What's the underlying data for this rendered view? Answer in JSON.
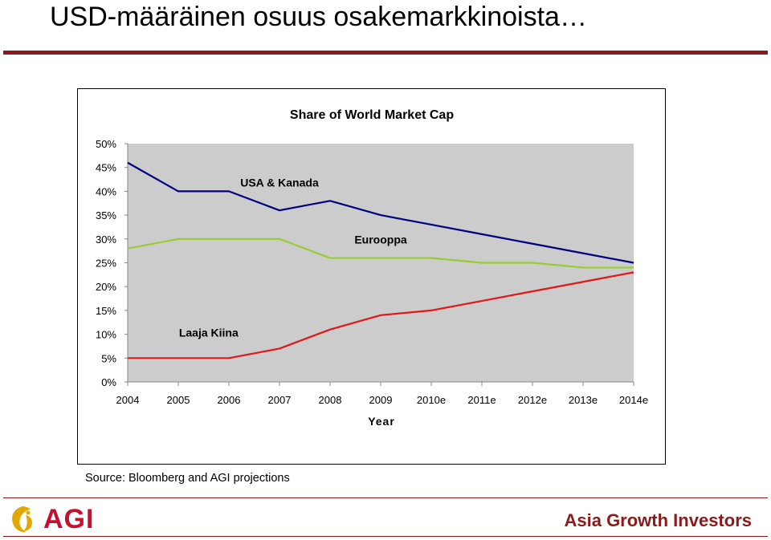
{
  "slide": {
    "title": "USD-määräinen osuus osakemarkkinoista…",
    "source": "Source: Bloomberg and AGI projections",
    "logo_text": "AGI",
    "company_name": "Asia Growth Investors"
  },
  "colors": {
    "rule": "#8b1a1a",
    "plot_background": "#cccccc",
    "logo_red": "#c8102e",
    "logo_gold": "#e0a800"
  },
  "icons": {
    "logo": "agi-logo-icon"
  },
  "chart_data": {
    "type": "line",
    "title": "Share of World Market Cap",
    "xlabel": "Year",
    "ylabel": "",
    "categories": [
      "2004",
      "2005",
      "2006",
      "2007",
      "2008",
      "2009",
      "2010e",
      "2011e",
      "2012e",
      "2013e",
      "2014e"
    ],
    "ylim": [
      0,
      50
    ],
    "yticks": [
      "0%",
      "5%",
      "10%",
      "15%",
      "20%",
      "25%",
      "30%",
      "35%",
      "40%",
      "45%",
      "50%"
    ],
    "grid": false,
    "series": [
      {
        "name": "USA & Kanada",
        "color": "#000080",
        "values": [
          46,
          40,
          40,
          36,
          38,
          35,
          33,
          31,
          29,
          27,
          25
        ]
      },
      {
        "name": "Eurooppa",
        "color": "#99cc33",
        "values": [
          28,
          30,
          30,
          30,
          26,
          26,
          26,
          25,
          25,
          24,
          24
        ]
      },
      {
        "name": "Laaja Kiina",
        "color": "#e01818",
        "values": [
          5,
          5,
          5,
          7,
          11,
          14,
          15,
          17,
          19,
          21,
          23
        ]
      }
    ]
  }
}
